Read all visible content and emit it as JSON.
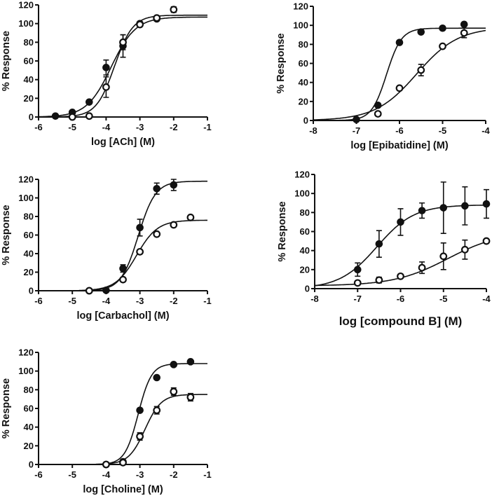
{
  "chart_data": [
    {
      "type": "scatter",
      "xlabel": "log [ACh] (M)",
      "ylabel": "% Response",
      "xlim": [
        -6,
        -1
      ],
      "ylim": [
        0,
        120
      ],
      "xticks": [
        -6,
        -5,
        -4,
        -3,
        -2,
        -1
      ],
      "yticks": [
        0,
        20,
        40,
        60,
        80,
        100,
        120
      ],
      "grid": false,
      "series": [
        {
          "marker": "filled-circle",
          "points": [
            {
              "x": -5.5,
              "y": 1
            },
            {
              "x": -5,
              "y": 5
            },
            {
              "x": -4.5,
              "y": 16
            },
            {
              "x": -4,
              "y": 53,
              "err": 8
            },
            {
              "x": -3.5,
              "y": 76,
              "err": 12
            },
            {
              "x": -3,
              "y": 100
            },
            {
              "x": -2.5,
              "y": 105
            }
          ],
          "fit": {
            "bottom": 0,
            "top": 107,
            "logEC50": -3.85,
            "hill": 1.2,
            "xrange": [
              -6,
              -1
            ]
          }
        },
        {
          "marker": "open-circle",
          "points": [
            {
              "x": -5,
              "y": 0
            },
            {
              "x": -4.5,
              "y": 1
            },
            {
              "x": -4,
              "y": 32,
              "err": 11
            },
            {
              "x": -3.5,
              "y": 80,
              "err": 8
            },
            {
              "x": -3,
              "y": 99
            },
            {
              "x": -2.5,
              "y": 106
            },
            {
              "x": -2,
              "y": 115,
              "err": 3
            }
          ],
          "fit": {
            "bottom": 0,
            "top": 109,
            "logEC50": -3.75,
            "hill": 1.6,
            "xrange": [
              -6,
              -1
            ]
          }
        }
      ]
    },
    {
      "type": "scatter",
      "xlabel": "log [Epibatidine] (M)",
      "ylabel": "% Response",
      "xlim": [
        -8,
        -4
      ],
      "ylim": [
        0,
        120
      ],
      "xticks": [
        -8,
        -7,
        -6,
        -5,
        -4
      ],
      "yticks": [
        0,
        20,
        40,
        60,
        80,
        100,
        120
      ],
      "grid": false,
      "series": [
        {
          "marker": "filled-circle",
          "points": [
            {
              "x": -7,
              "y": 1
            },
            {
              "x": -6.5,
              "y": 16
            },
            {
              "x": -6,
              "y": 82
            },
            {
              "x": -5.5,
              "y": 93
            },
            {
              "x": -5,
              "y": 97
            },
            {
              "x": -4.5,
              "y": 101
            }
          ],
          "fit": {
            "bottom": 0,
            "top": 97,
            "logEC50": -6.3,
            "hill": 2.5,
            "xrange": [
              -8,
              -4
            ]
          }
        },
        {
          "marker": "open-circle",
          "points": [
            {
              "x": -6.5,
              "y": 7
            },
            {
              "x": -6,
              "y": 34
            },
            {
              "x": -5.5,
              "y": 53,
              "err": 6
            },
            {
              "x": -5,
              "y": 78
            },
            {
              "x": -4.5,
              "y": 92,
              "err": 5
            }
          ],
          "fit": {
            "bottom": 0,
            "top": 98,
            "logEC50": -5.6,
            "hill": 0.9,
            "xrange": [
              -8,
              -4
            ]
          }
        }
      ]
    },
    {
      "type": "scatter",
      "xlabel": "log [Carbachol] (M)",
      "ylabel": "% Response",
      "xlim": [
        -6,
        -1
      ],
      "ylim": [
        0,
        120
      ],
      "xticks": [
        -6,
        -5,
        -4,
        -3,
        -2,
        -1
      ],
      "yticks": [
        0,
        20,
        40,
        60,
        80,
        100,
        120
      ],
      "grid": false,
      "series": [
        {
          "marker": "filled-circle",
          "points": [
            {
              "x": -4.5,
              "y": 0
            },
            {
              "x": -4,
              "y": 0.5
            },
            {
              "x": -3.5,
              "y": 24,
              "err": 4
            },
            {
              "x": -3,
              "y": 68,
              "err": 9
            },
            {
              "x": -2.5,
              "y": 110,
              "err": 6
            },
            {
              "x": -2,
              "y": 114,
              "err": 6
            }
          ],
          "fit": {
            "bottom": 0,
            "top": 118,
            "logEC50": -3.05,
            "hill": 1.7,
            "xrange": [
              -4.8,
              -1
            ]
          }
        },
        {
          "marker": "open-circle",
          "points": [
            {
              "x": -4.5,
              "y": 0
            },
            {
              "x": -3.5,
              "y": 12
            },
            {
              "x": -3,
              "y": 42
            },
            {
              "x": -2.5,
              "y": 61
            },
            {
              "x": -2,
              "y": 71
            },
            {
              "x": -1.5,
              "y": 79
            }
          ],
          "fit": {
            "bottom": 0,
            "top": 76,
            "logEC50": -3.1,
            "hill": 1.4,
            "xrange": [
              -4.8,
              -1
            ]
          }
        }
      ]
    },
    {
      "type": "scatter",
      "xlabel": "log [compound B] (M)",
      "ylabel": "% Response",
      "xlim": [
        -8,
        -4
      ],
      "ylim": [
        0,
        120
      ],
      "xticks": [
        -8,
        -7,
        -6,
        -5,
        -4
      ],
      "yticks": [
        0,
        20,
        40,
        60,
        80,
        100,
        120
      ],
      "grid": false,
      "series": [
        {
          "marker": "filled-circle",
          "points": [
            {
              "x": -7,
              "y": 20,
              "err": 7
            },
            {
              "x": -6.5,
              "y": 47,
              "err": 14
            },
            {
              "x": -6,
              "y": 70,
              "err": 14
            },
            {
              "x": -5.5,
              "y": 82,
              "err": 8
            },
            {
              "x": -5,
              "y": 85,
              "err": 27
            },
            {
              "x": -4.5,
              "y": 87,
              "err": 20
            },
            {
              "x": -4,
              "y": 89,
              "err": 15
            }
          ],
          "fit": {
            "bottom": 0,
            "top": 88,
            "logEC50": -6.55,
            "hill": 1.0,
            "xrange": [
              -8,
              -4
            ]
          }
        },
        {
          "marker": "open-circle",
          "points": [
            {
              "x": -7,
              "y": 6
            },
            {
              "x": -6.5,
              "y": 9,
              "err": 3
            },
            {
              "x": -6,
              "y": 13,
              "err": 2
            },
            {
              "x": -5.5,
              "y": 22,
              "err": 6
            },
            {
              "x": -5,
              "y": 34,
              "err": 14
            },
            {
              "x": -4.5,
              "y": 41,
              "err": 10
            },
            {
              "x": -4,
              "y": 50
            }
          ],
          "fit": {
            "bottom": 3,
            "top": 60,
            "logEC50": -4.9,
            "hill": 0.7,
            "xrange": [
              -8,
              -4
            ]
          }
        }
      ]
    },
    {
      "type": "scatter",
      "xlabel": "log [Choline] (M)",
      "ylabel": "% Response",
      "xlim": [
        -6,
        -1
      ],
      "ylim": [
        0,
        120
      ],
      "xticks": [
        -6,
        -5,
        -4,
        -3,
        -2,
        -1
      ],
      "yticks": [
        0,
        20,
        40,
        60,
        80,
        100,
        120
      ],
      "grid": false,
      "series": [
        {
          "marker": "filled-circle",
          "points": [
            {
              "x": -4,
              "y": 0
            },
            {
              "x": -3.5,
              "y": 3
            },
            {
              "x": -3,
              "y": 58
            },
            {
              "x": -2.5,
              "y": 93
            },
            {
              "x": -2,
              "y": 107
            },
            {
              "x": -1.5,
              "y": 110
            }
          ],
          "fit": {
            "bottom": 0,
            "top": 108,
            "logEC50": -3.05,
            "hill": 2.2,
            "xrange": [
              -4.5,
              -1
            ]
          }
        },
        {
          "marker": "open-circle",
          "points": [
            {
              "x": -4,
              "y": 0
            },
            {
              "x": -3.5,
              "y": 2
            },
            {
              "x": -3,
              "y": 30,
              "err": 4
            },
            {
              "x": -2.5,
              "y": 58,
              "err": 4
            },
            {
              "x": -2,
              "y": 78,
              "err": 4
            },
            {
              "x": -1.5,
              "y": 72,
              "err": 4
            }
          ],
          "fit": {
            "bottom": 0,
            "top": 75,
            "logEC50": -2.85,
            "hill": 1.8,
            "xrange": [
              -4.5,
              -1
            ]
          }
        }
      ]
    }
  ]
}
